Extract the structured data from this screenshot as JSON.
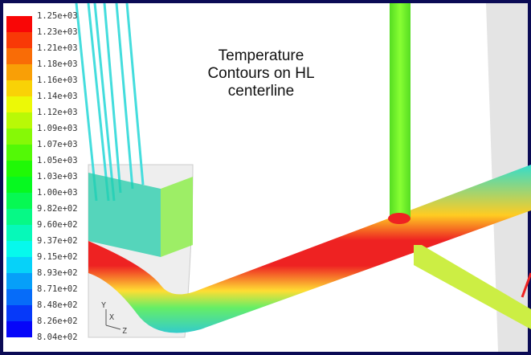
{
  "colorbar": {
    "labels": [
      "1.25e+03",
      "1.23e+03",
      "1.21e+03",
      "1.18e+03",
      "1.16e+03",
      "1.14e+03",
      "1.12e+03",
      "1.09e+03",
      "1.07e+03",
      "1.05e+03",
      "1.03e+03",
      "1.00e+03",
      "9.82e+02",
      "9.60e+02",
      "9.37e+02",
      "9.15e+02",
      "8.93e+02",
      "8.71e+02",
      "8.48e+02",
      "8.26e+02",
      "8.04e+02"
    ]
  },
  "annotation": {
    "lines": [
      "Temperature",
      "Contours on HL",
      "centerline"
    ]
  },
  "axes_triad": {
    "y": "Y",
    "x": "X",
    "z": "Z"
  }
}
